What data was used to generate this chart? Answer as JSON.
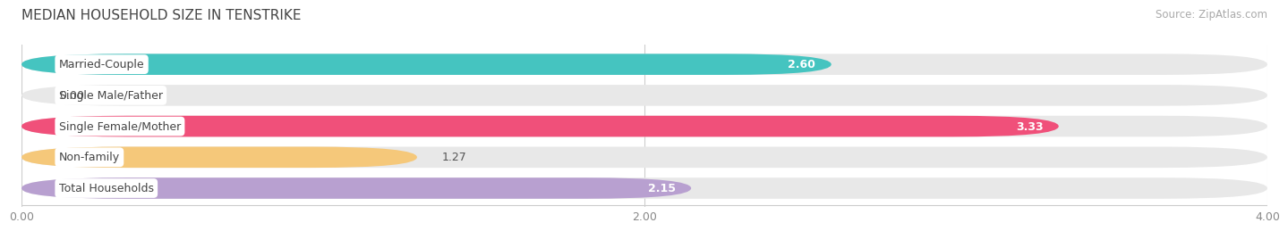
{
  "title": "MEDIAN HOUSEHOLD SIZE IN TENSTRIKE",
  "source": "Source: ZipAtlas.com",
  "categories": [
    "Married-Couple",
    "Single Male/Father",
    "Single Female/Mother",
    "Non-family",
    "Total Households"
  ],
  "values": [
    2.6,
    0.0,
    3.33,
    1.27,
    2.15
  ],
  "bar_colors": [
    "#45c4c0",
    "#a0b4e8",
    "#f0507a",
    "#f5c87a",
    "#b8a0d0"
  ],
  "label_bg_color": "#ffffff",
  "background_color": "#f5f5f5",
  "bar_bg_color": "#e8e8e8",
  "xlim": [
    0,
    4.0
  ],
  "xticks": [
    0.0,
    2.0,
    4.0
  ],
  "xtick_labels": [
    "0.00",
    "2.00",
    "4.00"
  ],
  "title_fontsize": 11,
  "label_fontsize": 9,
  "value_fontsize": 9,
  "source_fontsize": 8.5,
  "bar_height": 0.68,
  "value_colors": [
    "#ffffff",
    "#555555",
    "#ffffff",
    "#555555",
    "#555555"
  ]
}
